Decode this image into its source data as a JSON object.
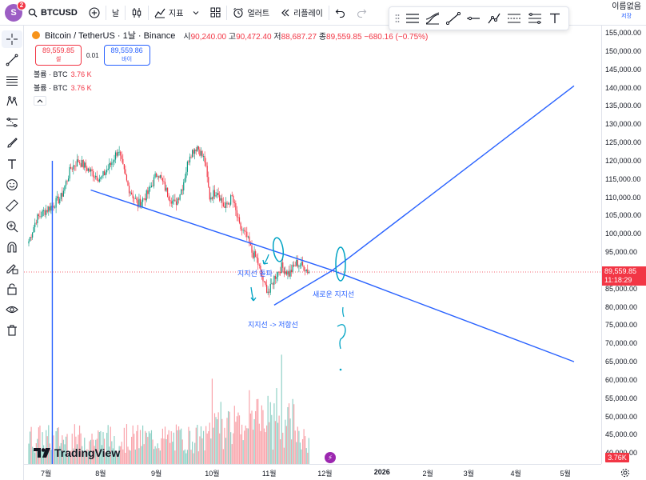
{
  "topbar": {
    "avatar_letter": "S",
    "notification_count": "2",
    "symbol": "BTCUSD",
    "interval": "날",
    "indicators_label": "지표",
    "alerts_label": "얼러트",
    "replay_label": "리플레이",
    "save_title": "이름없음",
    "save_sub": "저장"
  },
  "legend": {
    "title": "Bitcoin / TetherUS · 1날 · Binance",
    "open_label": "시",
    "open": "90,240.00",
    "high_label": "고",
    "high": "90,472.40",
    "low_label": "저",
    "low": "88,687.27",
    "close_label": "종",
    "close": "89,559.85",
    "change": "−680.16 (−0.75%)",
    "sell_price": "89,559.85",
    "sell_label": "셀",
    "spread": "0.01",
    "buy_price": "89,559.86",
    "buy_label": "바이",
    "volume1_label": "볼륨 · BTC",
    "volume1_value": "3.76 K",
    "volume2_label": "볼륨 · BTC",
    "volume2_value": "3.76 K"
  },
  "price_axis": {
    "ticks": [
      "155,000.00",
      "150,000.00",
      "145,000.00",
      "140,000.00",
      "135,000.00",
      "130,000.00",
      "125,000.00",
      "120,000.00",
      "115,000.00",
      "110,000.00",
      "105,000.00",
      "100,000.00",
      "95,000.00",
      "90,000.00",
      "85,000.00",
      "80,000.00",
      "75,000.00",
      "70,000.00",
      "65,000.00",
      "60,000.00",
      "55,000.00",
      "50,000.00",
      "45,000.00",
      "40,000.00"
    ],
    "current_price": "89,559.85",
    "countdown": "11:18:29",
    "volume_tag": "3.76K"
  },
  "time_axis": {
    "ticks": [
      "7월",
      "8월",
      "9월",
      "10월",
      "11월",
      "12월",
      "2026",
      "2월",
      "3월",
      "4월",
      "5월"
    ]
  },
  "annotations": {
    "support_break": "지지선 돌파",
    "new_support": "새로운 지지선",
    "support_to_resistance": "지지선 -> 저항선",
    "question": "?"
  },
  "branding": {
    "logo_text": "TradingView"
  },
  "colors": {
    "up": "#089981",
    "down": "#f23645",
    "drawing": "#2962ff",
    "marker": "#00a3c4"
  },
  "chart_data": {
    "type": "candlestick",
    "ylim": [
      37000,
      157000
    ],
    "price_ticks": [
      155000,
      150000,
      145000,
      140000,
      135000,
      130000,
      125000,
      120000,
      115000,
      110000,
      105000,
      100000,
      95000,
      90000,
      85000,
      80000,
      75000,
      70000,
      65000,
      60000,
      55000,
      50000,
      45000,
      40000
    ],
    "x_labels": [
      "7월",
      "8월",
      "9월",
      "10월",
      "11월",
      "12월",
      "2026",
      "2월",
      "3월",
      "4월",
      "5월"
    ],
    "current_price": 89559.85,
    "anchors": [
      {
        "d": 0,
        "p": 98000
      },
      {
        "d": 6,
        "p": 104000
      },
      {
        "d": 12,
        "p": 106000
      },
      {
        "d": 20,
        "p": 108000
      },
      {
        "d": 26,
        "p": 110000
      },
      {
        "d": 34,
        "p": 118000
      },
      {
        "d": 40,
        "p": 120000
      },
      {
        "d": 50,
        "p": 117000
      },
      {
        "d": 58,
        "p": 115000
      },
      {
        "d": 66,
        "p": 119000
      },
      {
        "d": 72,
        "p": 123000
      },
      {
        "d": 80,
        "p": 113000
      },
      {
        "d": 88,
        "p": 108000
      },
      {
        "d": 96,
        "p": 111000
      },
      {
        "d": 104,
        "p": 117000
      },
      {
        "d": 112,
        "p": 111000
      },
      {
        "d": 118,
        "p": 108000
      },
      {
        "d": 124,
        "p": 113000
      },
      {
        "d": 130,
        "p": 122000
      },
      {
        "d": 136,
        "p": 124000
      },
      {
        "d": 142,
        "p": 120000
      },
      {
        "d": 146,
        "p": 110000
      },
      {
        "d": 152,
        "p": 112000
      },
      {
        "d": 158,
        "p": 107000
      },
      {
        "d": 164,
        "p": 110000
      },
      {
        "d": 170,
        "p": 102000
      },
      {
        "d": 176,
        "p": 99000
      },
      {
        "d": 180,
        "p": 95000
      },
      {
        "d": 184,
        "p": 93000
      },
      {
        "d": 190,
        "p": 86000
      },
      {
        "d": 194,
        "p": 84000
      },
      {
        "d": 198,
        "p": 88000
      },
      {
        "d": 204,
        "p": 91000
      },
      {
        "d": 210,
        "p": 89000
      },
      {
        "d": 216,
        "p": 92000
      },
      {
        "d": 222,
        "p": 91000
      },
      {
        "d": 226,
        "p": 89560
      }
    ],
    "volume_ylim": [
      0,
      90
    ],
    "drawings": [
      {
        "type": "vline",
        "x_day": 19,
        "from_price": 120000,
        "to_price": 37000
      },
      {
        "type": "line",
        "x1_day": 50,
        "y1": 112000,
        "x2_day": 245,
        "y2": 90000
      },
      {
        "type": "line",
        "x1_day": 245,
        "y1": 90000,
        "x2_day": 440,
        "y2": 65000
      },
      {
        "type": "line",
        "x1_day": 198,
        "y1": 80500,
        "x2_day": 245,
        "y2": 90000
      },
      {
        "type": "line",
        "x1_day": 245,
        "y1": 90000,
        "x2_day": 440,
        "y2": 140500
      }
    ]
  }
}
